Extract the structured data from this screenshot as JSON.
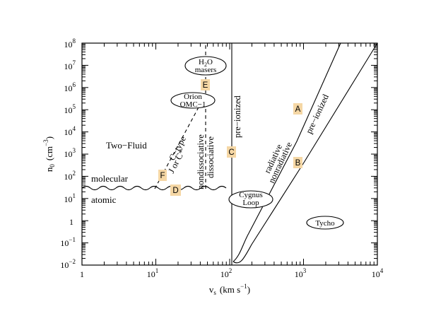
{
  "axes": {
    "x_title": "v",
    "x_title_sub": "s",
    "x_title_units": "(km s",
    "x_title_exp": "−1",
    "x_title_close": ")",
    "y_title": "n",
    "y_title_sub": "0",
    "y_title_units": "(cm",
    "y_title_exp": "−3",
    "y_title_close": ")",
    "x_ticks": [
      {
        "base": "1",
        "exp": ""
      },
      {
        "base": "10",
        "exp": "1"
      },
      {
        "base": "10",
        "exp": "2"
      },
      {
        "base": "10",
        "exp": "3"
      },
      {
        "base": "10",
        "exp": "4"
      }
    ],
    "y_ticks": [
      {
        "base": "10",
        "exp": "−2"
      },
      {
        "base": "10",
        "exp": "−1"
      },
      {
        "base": "1",
        "exp": ""
      },
      {
        "base": "10",
        "exp": "1"
      },
      {
        "base": "10",
        "exp": "2"
      },
      {
        "base": "10",
        "exp": "3"
      },
      {
        "base": "10",
        "exp": "4"
      },
      {
        "base": "10",
        "exp": "5"
      },
      {
        "base": "10",
        "exp": "6"
      },
      {
        "base": "10",
        "exp": "7"
      },
      {
        "base": "10",
        "exp": "8"
      }
    ],
    "x_log_range": [
      0,
      4
    ],
    "y_log_range": [
      -2,
      8
    ]
  },
  "regions": {
    "two_fluid": "Two−Fluid",
    "molecular": "molecular",
    "atomic": "atomic"
  },
  "boundaries": {
    "c_type": "C−type",
    "j_or_c": "J or C*",
    "nondissociative": "nondissociative",
    "dissociative": "dissociative",
    "pre_ionized_left": "pre−ionized",
    "radiative": "radiative",
    "nonradiative": "nonradiative",
    "pre_ionized_right": "pre−ionized"
  },
  "objects": {
    "h2o_line1": "H",
    "h2o_sub": "2",
    "h2o_line1_end": "O",
    "h2o_line2": "masers",
    "orion_line1": "Orion",
    "orion_line2": "OMC−1",
    "cygnus_line1": "Cygnus",
    "cygnus_line2": "Loop",
    "tycho": "Tycho"
  },
  "markers": [
    "A",
    "B",
    "C",
    "D",
    "E",
    "F"
  ]
}
